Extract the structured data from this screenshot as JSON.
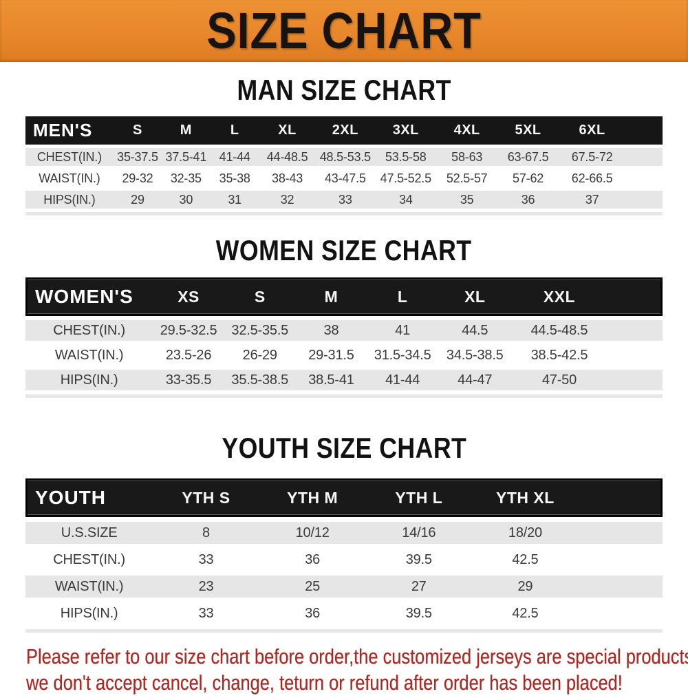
{
  "banner": {
    "title": "SIZE CHART",
    "bg_color": "#e8872b",
    "text_color": "#161310"
  },
  "colors": {
    "table_header_bg": "#161616",
    "shaded_row_bg": "#e6e6e6",
    "notice_red": "#a82822"
  },
  "sections": {
    "men": {
      "heading": "MAN SIZE CHART",
      "header": {
        "label": "MEN'S",
        "columns": [
          "S",
          "M",
          "L",
          "XL",
          "2XL",
          "3XL",
          "4XL",
          "5XL",
          "6XL"
        ]
      },
      "rows": [
        {
          "label": "CHEST(IN.)",
          "values": [
            "35-37.5",
            "37.5-41",
            "41-44",
            "44-48.5",
            "48.5-53.5",
            "53.5-58",
            "58-63",
            "63-67.5",
            "67.5-72"
          ]
        },
        {
          "label": "WAIST(IN.)",
          "values": [
            "29-32",
            "32-35",
            "35-38",
            "38-43",
            "43-47.5",
            "47.5-52.5",
            "52.5-57",
            "57-62",
            "62-66.5"
          ]
        },
        {
          "label": "HIPS(IN.)",
          "values": [
            "29",
            "30",
            "31",
            "32",
            "33",
            "34",
            "35",
            "36",
            "37"
          ]
        }
      ]
    },
    "women": {
      "heading": "WOMEN SIZE CHART",
      "header": {
        "label": "WOMEN'S",
        "columns": [
          "XS",
          "S",
          "M",
          "L",
          "XL",
          "XXL"
        ]
      },
      "rows": [
        {
          "label": "CHEST(IN.)",
          "values": [
            "29.5-32.5",
            "32.5-35.5",
            "38",
            "41",
            "44.5",
            "44.5-48.5"
          ]
        },
        {
          "label": "WAIST(IN.)",
          "values": [
            "23.5-26",
            "26-29",
            "29-31.5",
            "31.5-34.5",
            "34.5-38.5",
            "38.5-42.5"
          ]
        },
        {
          "label": "HIPS(IN.)",
          "values": [
            "33-35.5",
            "35.5-38.5",
            "38.5-41",
            "41-44",
            "44-47",
            "47-50"
          ]
        }
      ]
    },
    "youth": {
      "heading": "YOUTH SIZE CHART",
      "header": {
        "label": "YOUTH",
        "columns": [
          "YTH S",
          "YTH M",
          "YTH L",
          "YTH XL"
        ]
      },
      "rows": [
        {
          "label": "U.S.SIZE",
          "values": [
            "8",
            "10/12",
            "14/16",
            "18/20"
          ]
        },
        {
          "label": "CHEST(IN.)",
          "values": [
            "33",
            "36",
            "39.5",
            "42.5"
          ]
        },
        {
          "label": "WAIST(IN.)",
          "values": [
            "23",
            "25",
            "27",
            "29"
          ]
        },
        {
          "label": "HIPS(IN.)",
          "values": [
            "33",
            "36",
            "39.5",
            "42.5"
          ]
        }
      ]
    }
  },
  "notice": {
    "line1": "Please refer to our size chart before order,the customized jerseys are special products,",
    "line2": "we don't accept cancel, change, teturn or refund after order has been placed!"
  }
}
